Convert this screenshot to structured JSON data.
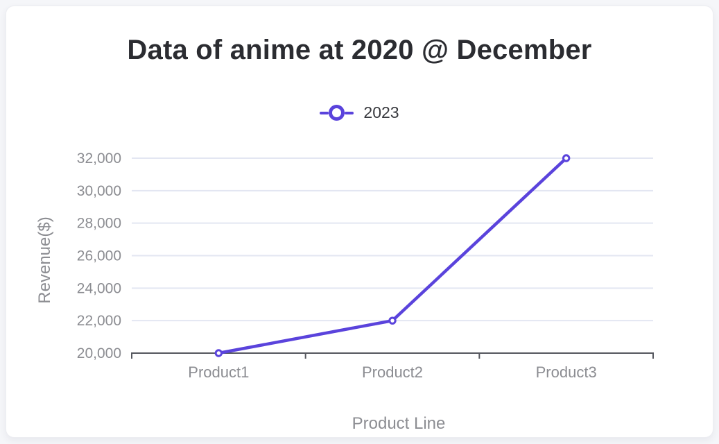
{
  "chart_data": {
    "type": "line",
    "title": "Data of anime at 2020 @ December",
    "xlabel": "Product Line",
    "ylabel": "Revenue($)",
    "categories": [
      "Product1",
      "Product2",
      "Product3"
    ],
    "series": [
      {
        "name": "2023",
        "values": [
          20000,
          22000,
          32000
        ]
      }
    ],
    "ylim": [
      20000,
      32000
    ],
    "ytick_step": 2000,
    "ytick_labels": [
      "20,000",
      "22,000",
      "24,000",
      "26,000",
      "28,000",
      "30,000",
      "32,000"
    ],
    "grid": "horizontal gridlines",
    "legend_position": "top center",
    "marker_style": "hollow circle",
    "colors": {
      "series": "#5A43DC",
      "grid": "#E3E6F2",
      "axis": "#55575E",
      "tick_label": "#8B8C91",
      "axis_title": "#8C8D92",
      "title": "#2B2C31",
      "legend_text": "#37383D",
      "card_background": "#FFFFFF",
      "page_background": "#F5F6F9"
    }
  }
}
